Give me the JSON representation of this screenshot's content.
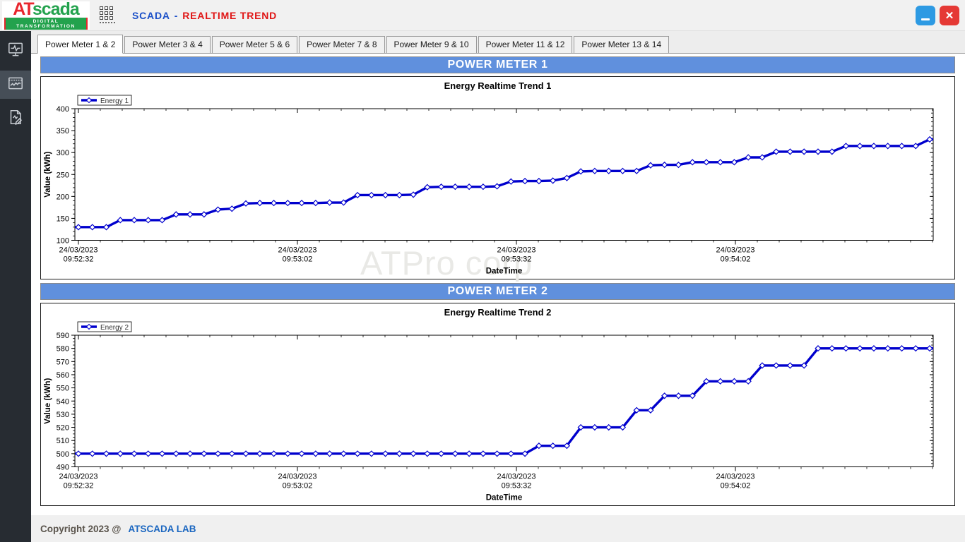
{
  "topbar": {
    "logo": {
      "part1": "AT",
      "part2": "scada",
      "tagline": "DIGITAL TRANSFORMATION"
    },
    "title": {
      "primary": "SCADA",
      "separator": "-",
      "secondary": "REALTIME TREND"
    },
    "controls": {
      "minimize_icon": "minus",
      "close_icon": "✕"
    }
  },
  "sidebar": {
    "items": [
      {
        "icon": "monitor-pulse-icon",
        "active": false
      },
      {
        "icon": "trend-chart-icon",
        "active": true
      },
      {
        "icon": "report-edit-icon",
        "active": false
      }
    ]
  },
  "tabs": [
    {
      "label": "Power Meter 1 & 2",
      "active": true
    },
    {
      "label": "Power Meter 3 & 4",
      "active": false
    },
    {
      "label": "Power Meter 5 & 6",
      "active": false
    },
    {
      "label": "Power Meter 7 & 8",
      "active": false
    },
    {
      "label": "Power Meter 9 & 10",
      "active": false
    },
    {
      "label": "Power Meter 11 & 12",
      "active": false
    },
    {
      "label": "Power Meter 13 & 14",
      "active": false
    }
  ],
  "sections": [
    {
      "banner": "POWER METER 1",
      "chart_index": 0
    },
    {
      "banner": "POWER METER 2",
      "chart_index": 1
    }
  ],
  "watermark": "ATPro corp",
  "footer": {
    "copyright": "Copyright 2023 @",
    "brand": "ATSCADA LAB"
  },
  "colors": {
    "banner_blue": "#6090dd",
    "series_blue": "#0000cd",
    "title_blue": "#1b50c8",
    "title_red": "#e01515",
    "logo_red": "#e8262d",
    "logo_green": "#23a24d"
  },
  "chart_data": [
    {
      "type": "line",
      "title": "Energy Realtime Trend 1",
      "legend": "Energy 1",
      "xlabel": "DateTime",
      "ylabel": "Value (kWh)",
      "ylim": [
        100,
        400
      ],
      "ytick_step": 50,
      "y_minor_step": 10,
      "grid": false,
      "legend_position": "top-left",
      "line_color": "#0000cd",
      "x_major_labels": [
        [
          "24/03/2023",
          "09:52:32"
        ],
        [
          "24/03/2023",
          "09:53:02"
        ],
        [
          "24/03/2023",
          "09:53:32"
        ],
        [
          "24/03/2023",
          "09:54:02"
        ]
      ],
      "x_interval_seconds": 30,
      "values": [
        130,
        130,
        130,
        146,
        146,
        146,
        146,
        159,
        159,
        159,
        170,
        172,
        184,
        185,
        185,
        185,
        185,
        185,
        186,
        186,
        203,
        203,
        203,
        203,
        204,
        221,
        222,
        222,
        222,
        222,
        223,
        234,
        235,
        235,
        236,
        242,
        257,
        258,
        258,
        258,
        258,
        271,
        272,
        272,
        278,
        278,
        278,
        278,
        289,
        289,
        302,
        302,
        302,
        302,
        302,
        315,
        315,
        315,
        315,
        315,
        315,
        330
      ]
    },
    {
      "type": "line",
      "title": "Energy Realtime Trend 2",
      "legend": "Energy 2",
      "xlabel": "DateTime",
      "ylabel": "Value (kWh)",
      "ylim": [
        490,
        590
      ],
      "ytick_step": 10,
      "y_minor_step": 2.5,
      "grid": false,
      "legend_position": "top-left",
      "line_color": "#0000cd",
      "x_major_labels": [
        [
          "24/03/2023",
          "09:52:32"
        ],
        [
          "24/03/2023",
          "09:53:02"
        ],
        [
          "24/03/2023",
          "09:53:32"
        ],
        [
          "24/03/2023",
          "09:54:02"
        ]
      ],
      "x_interval_seconds": 30,
      "values": [
        500,
        500,
        500,
        500,
        500,
        500,
        500,
        500,
        500,
        500,
        500,
        500,
        500,
        500,
        500,
        500,
        500,
        500,
        500,
        500,
        500,
        500,
        500,
        500,
        500,
        500,
        500,
        500,
        500,
        500,
        500,
        500,
        500,
        506,
        506,
        506,
        520,
        520,
        520,
        520,
        533,
        533,
        544,
        544,
        544,
        555,
        555,
        555,
        555,
        567,
        567,
        567,
        567,
        580,
        580,
        580,
        580,
        580,
        580,
        580,
        580,
        580
      ]
    }
  ]
}
